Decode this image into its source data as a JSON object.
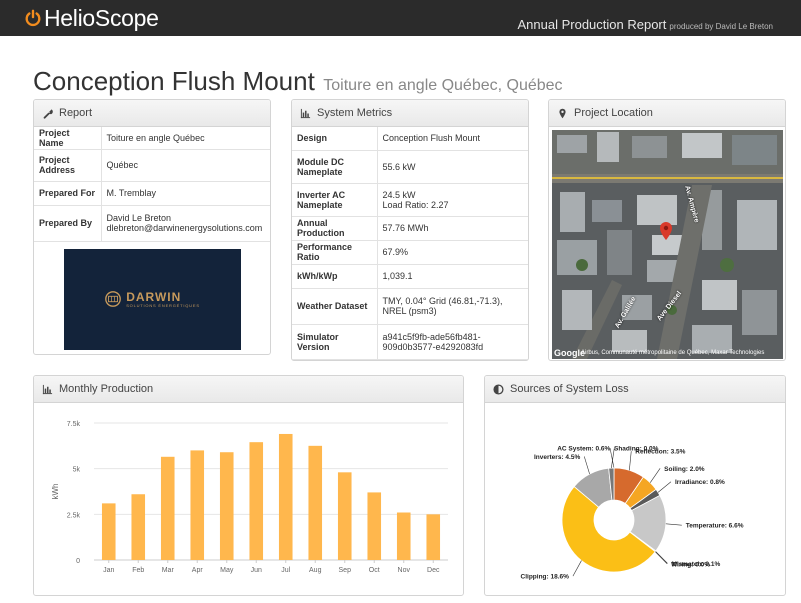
{
  "header": {
    "brand": "HelioScope",
    "report_title": "Annual Production Report",
    "produced_by": "produced by David Le Breton"
  },
  "page": {
    "title": "Conception Flush Mount",
    "subtitle": "Toiture en angle Québec, Québec"
  },
  "report_panel": {
    "heading": "Report",
    "icon": "wrench-icon",
    "rows": [
      {
        "key": "Project Name",
        "value": "Toiture en angle Québec"
      },
      {
        "key": "Project Address",
        "value": "Québec"
      },
      {
        "key": "Prepared For",
        "value": "M. Tremblay"
      },
      {
        "key": "Prepared By",
        "value": "David Le Breton",
        "value2": "dlebreton@darwinenergysolutions.com"
      }
    ],
    "logo": {
      "word": "DARWIN",
      "tagline": "SOLUTIONS ÉNERGÉTIQUES",
      "bg": "#13233a",
      "color": "#c79a5c"
    }
  },
  "metrics_panel": {
    "heading": "System Metrics",
    "icon": "bar-chart-icon",
    "rows": [
      {
        "key": "Design",
        "value": "Conception Flush Mount"
      },
      {
        "key": "Module DC Nameplate",
        "value": "55.6 kW"
      },
      {
        "key": "Inverter AC Nameplate",
        "value": "24.5 kW",
        "value2": "Load Ratio: 2.27"
      },
      {
        "key": "Annual Production",
        "value": "57.76 MWh"
      },
      {
        "key": "Performance Ratio",
        "value": "67.9%"
      },
      {
        "key": "kWh/kWp",
        "value": "1,039.1"
      },
      {
        "key": "Weather Dataset",
        "value": "TMY, 0.04° Grid (46.81,-71.3), NREL (psm3)"
      },
      {
        "key": "Simulator Version",
        "value": "a941c5f9fb-ade56fb481-909d0b3577-e4292083fd"
      }
    ]
  },
  "location_panel": {
    "heading": "Project Location",
    "icon": "map-pin-icon",
    "map": {
      "google": "Google",
      "credit": "Airbus, Communauté métropolitaine de Québec, Maxar Technologies",
      "streets": [
        "Av. Ampère",
        "Av. Galilée",
        "Ave Diesel"
      ]
    }
  },
  "monthly_panel": {
    "heading": "Monthly Production",
    "icon": "bar-chart-icon"
  },
  "loss_panel": {
    "heading": "Sources of System Loss",
    "icon": "half-circle-icon"
  },
  "chart_data": [
    {
      "type": "bar",
      "ylabel": "kWh",
      "ylim": [
        0,
        7500
      ],
      "yticks": [
        0,
        2500,
        5000,
        7500
      ],
      "ytick_labels": [
        "0",
        "2.5k",
        "5k",
        "7.5k"
      ],
      "categories": [
        "Jan",
        "Feb",
        "Mar",
        "Apr",
        "May",
        "Jun",
        "Jul",
        "Aug",
        "Sep",
        "Oct",
        "Nov",
        "Dec"
      ],
      "values": [
        3100,
        3600,
        5650,
        6000,
        5900,
        6450,
        6900,
        6250,
        4800,
        3700,
        2600,
        2500
      ],
      "color": "#ffb74d",
      "grid": true
    },
    {
      "type": "pie",
      "donut": true,
      "slices": [
        {
          "label": "Shading",
          "value": 0.0,
          "display": "0.0%",
          "color": "#e8622c"
        },
        {
          "label": "Reflection",
          "value": 3.5,
          "display": "3.5%",
          "color": "#d66a2d"
        },
        {
          "label": "Soiling",
          "value": 2.0,
          "display": "2.0%",
          "color": "#f5a623"
        },
        {
          "label": "Irradiance",
          "value": 0.8,
          "display": "0.8%",
          "color": "#5a5a5a"
        },
        {
          "label": "Temperature",
          "value": 6.6,
          "display": "6.6%",
          "color": "#c8c8c8"
        },
        {
          "label": "Mismatch",
          "value": 0.1,
          "display": "0.1%",
          "color": "#b0b0b0"
        },
        {
          "label": "Wiring",
          "value": 0.0,
          "display": "0.0%",
          "color": "#999999"
        },
        {
          "label": "Clipping",
          "value": 18.6,
          "display": "18.6%",
          "color": "#fbbf16"
        },
        {
          "label": "Inverters",
          "value": 4.5,
          "display": "4.5%",
          "color": "#a8a8a8"
        },
        {
          "label": "AC System",
          "value": 0.6,
          "display": "0.6%",
          "color": "#777777"
        }
      ]
    }
  ]
}
